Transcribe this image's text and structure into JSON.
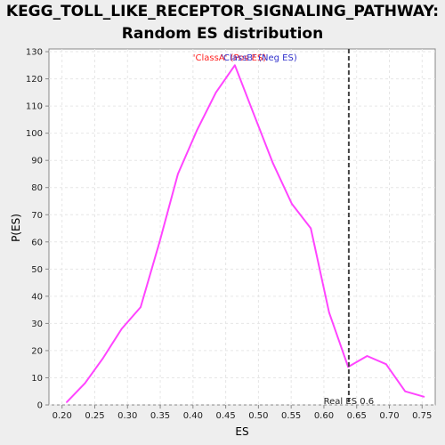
{
  "title_line1": "KEGG_TOLL_LIKE_RECEPTOR_SIGNALING_PATHWAY:",
  "title_line2": "Random ES distribution",
  "chart_data": {
    "type": "line",
    "xlabel": "ES",
    "ylabel": "P(ES)",
    "xlim": [
      0.18,
      0.77
    ],
    "ylim": [
      0,
      131
    ],
    "x_ticks": [
      0.2,
      0.25,
      0.3,
      0.35,
      0.4,
      0.45,
      0.5,
      0.55,
      0.6,
      0.65,
      0.7,
      0.75
    ],
    "x_tick_labels": [
      "0.20",
      "0.25",
      "0.30",
      "0.35",
      "0.40",
      "0.45",
      "0.50",
      "0.55",
      "0.60",
      "0.65",
      "0.70",
      "0.75"
    ],
    "y_ticks": [
      0,
      10,
      20,
      30,
      40,
      50,
      60,
      70,
      80,
      90,
      100,
      110,
      120,
      130
    ],
    "grid": true,
    "series": [
      {
        "color": "#ff44ff",
        "x": [
          0.207,
          0.235,
          0.262,
          0.291,
          0.32,
          0.349,
          0.377,
          0.406,
          0.435,
          0.464,
          0.493,
          0.522,
          0.551,
          0.58,
          0.608,
          0.637,
          0.666,
          0.695,
          0.724,
          0.753
        ],
        "y": [
          1,
          8,
          17,
          28,
          36,
          60,
          85,
          101,
          115,
          125,
          107,
          89,
          74,
          65,
          34,
          14,
          18,
          15,
          5,
          3
        ]
      }
    ],
    "legend_entries": [
      {
        "text": "'ClassA' (Pos ES)",
        "color": "#ff2222"
      },
      {
        "text": "'ClassB' (Neg ES)",
        "color": "#3333cc"
      }
    ],
    "real_es": {
      "value": 0.638,
      "label": "Real ES 0.6",
      "color": "#444444"
    }
  }
}
